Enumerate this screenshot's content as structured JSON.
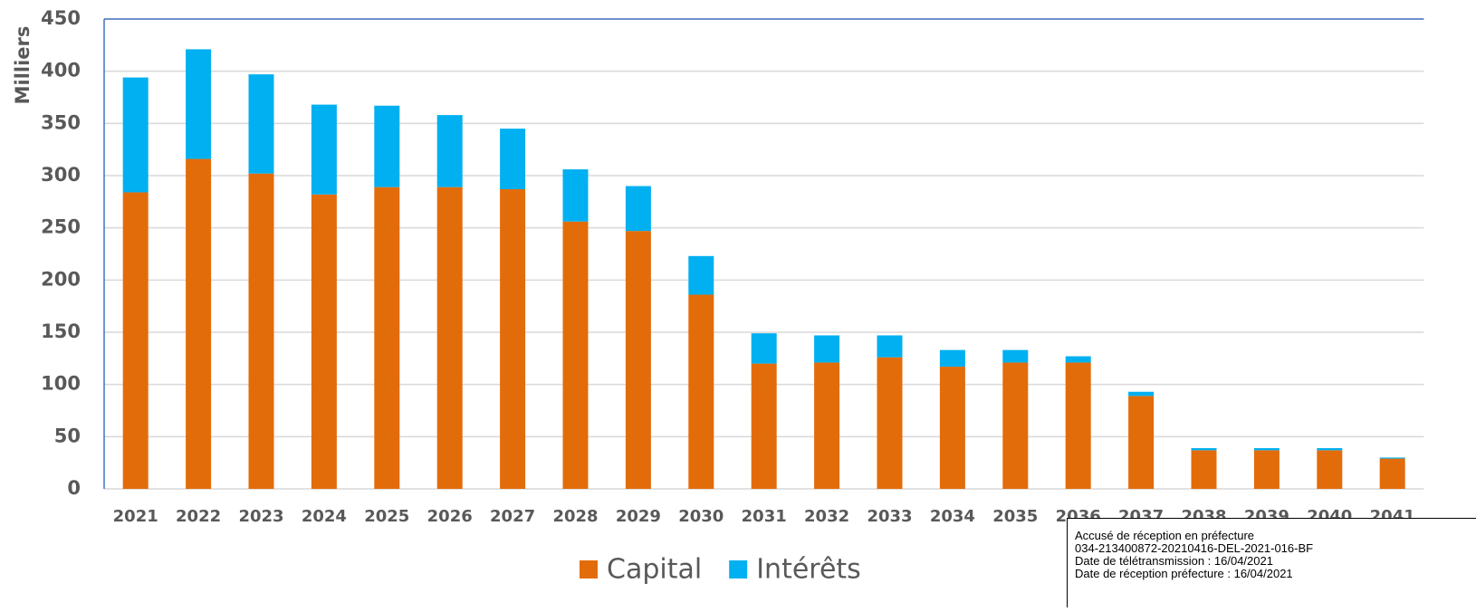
{
  "chart_data": {
    "type": "stacked_bar",
    "y_axis_label": "Milliers",
    "categories": [
      "2021",
      "2022",
      "2023",
      "2024",
      "2025",
      "2026",
      "2027",
      "2028",
      "2029",
      "2030",
      "2031",
      "2032",
      "2033",
      "2034",
      "2035",
      "2036",
      "2037",
      "2038",
      "2039",
      "2040",
      "2041"
    ],
    "series": [
      {
        "name": "Capital",
        "color": "#e36c0a",
        "values": [
          284,
          316,
          302,
          282,
          289,
          289,
          287,
          256,
          247,
          186,
          120,
          121,
          126,
          117,
          121,
          121,
          89,
          37,
          37,
          37,
          29
        ]
      },
      {
        "name": "Intérêts",
        "color": "#00b0f0",
        "values": [
          110,
          105,
          95,
          86,
          78,
          69,
          58,
          50,
          43,
          37,
          29,
          26,
          21,
          16,
          12,
          6,
          4,
          2,
          2,
          2,
          1
        ]
      }
    ],
    "ylim": [
      0,
      450
    ],
    "yticks": [
      0,
      50,
      100,
      150,
      200,
      250,
      300,
      350,
      400,
      450
    ],
    "grid": true,
    "legend": "bottom"
  },
  "stamp": {
    "lines": [
      "Accusé de réception en préfecture",
      "034-213400872-20210416-DEL-2021-016-BF",
      "Date de télétransmission : 16/04/2021",
      "Date de réception préfecture : 16/04/2021"
    ]
  }
}
